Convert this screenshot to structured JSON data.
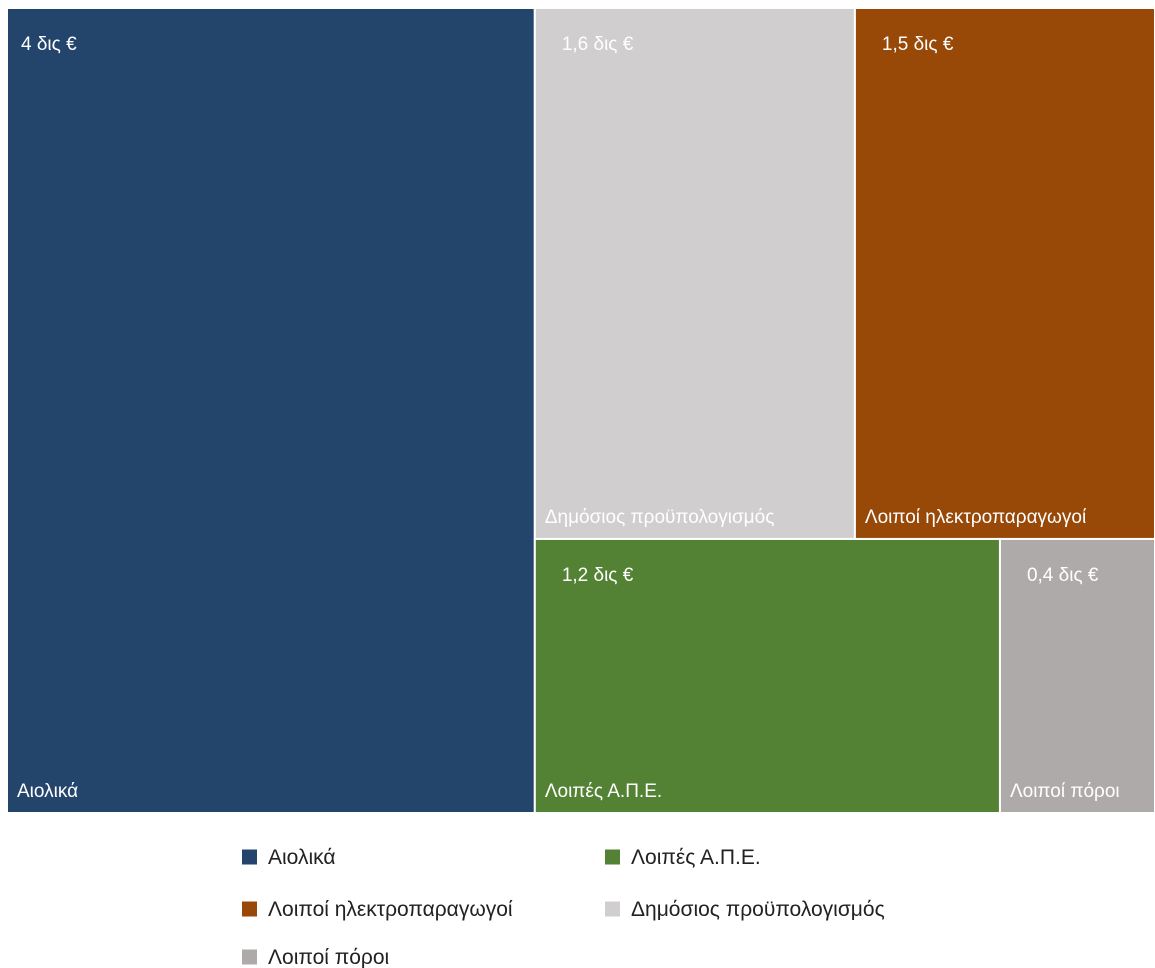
{
  "chart_data": {
    "type": "treemap",
    "title": "",
    "unit": "δις €",
    "items": [
      {
        "name": "Αιολικά",
        "value": 4.0,
        "value_label": "4 δις €",
        "color": "#24456b"
      },
      {
        "name": "Δημόσιος προϋπολογισμός",
        "value": 1.6,
        "value_label": "1,6 δις €",
        "color": "#d0cece"
      },
      {
        "name": "Λοιποί ηλεκτροπαραγωγοί",
        "value": 1.5,
        "value_label": "1,5 δις €",
        "color": "#984807"
      },
      {
        "name": "Λοιπές Α.Π.Ε.",
        "value": 1.2,
        "value_label": "1,2 δις €",
        "color": "#548235"
      },
      {
        "name": "Λοιποί πόροι",
        "value": 0.4,
        "value_label": "0,4 δις €",
        "color": "#aeaaaa"
      }
    ],
    "legend": {
      "placement": "bottom",
      "order": [
        "Αιολικά",
        "Λοιπές Α.Π.Ε.",
        "Λοιποί ηλεκτροπαραγωγοί",
        "Δημόσιος προϋπολογισμός",
        "Λοιποί πόροι"
      ]
    }
  }
}
